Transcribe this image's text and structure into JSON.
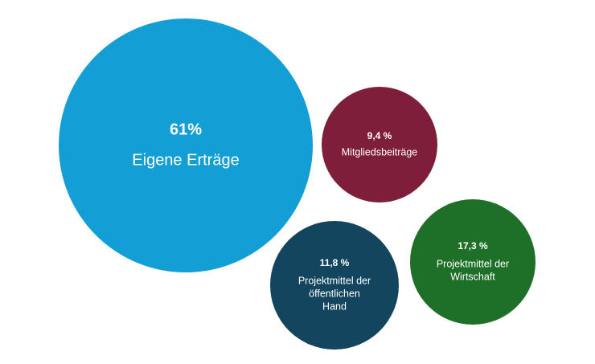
{
  "chart_data": {
    "type": "bubble",
    "title": "",
    "unit": "%",
    "series": [
      {
        "value": 61,
        "value_text": "61%",
        "label_lines": [
          "Eigene Erträge"
        ],
        "color": "#139ed6"
      },
      {
        "value": 9.4,
        "value_text": "9,4 %",
        "label_lines": [
          "Mitgliedsbeiträge"
        ],
        "color": "#7f1e3a"
      },
      {
        "value": 11.8,
        "value_text": "11,8 %",
        "label_lines": [
          "Projektmittel der",
          "öffentlichen",
          "Hand"
        ],
        "color": "#14455f"
      },
      {
        "value": 17.3,
        "value_text": "17,3 %",
        "label_lines": [
          "Projektmittel der",
          "Wirtschaft"
        ],
        "color": "#1e6f27"
      }
    ]
  }
}
